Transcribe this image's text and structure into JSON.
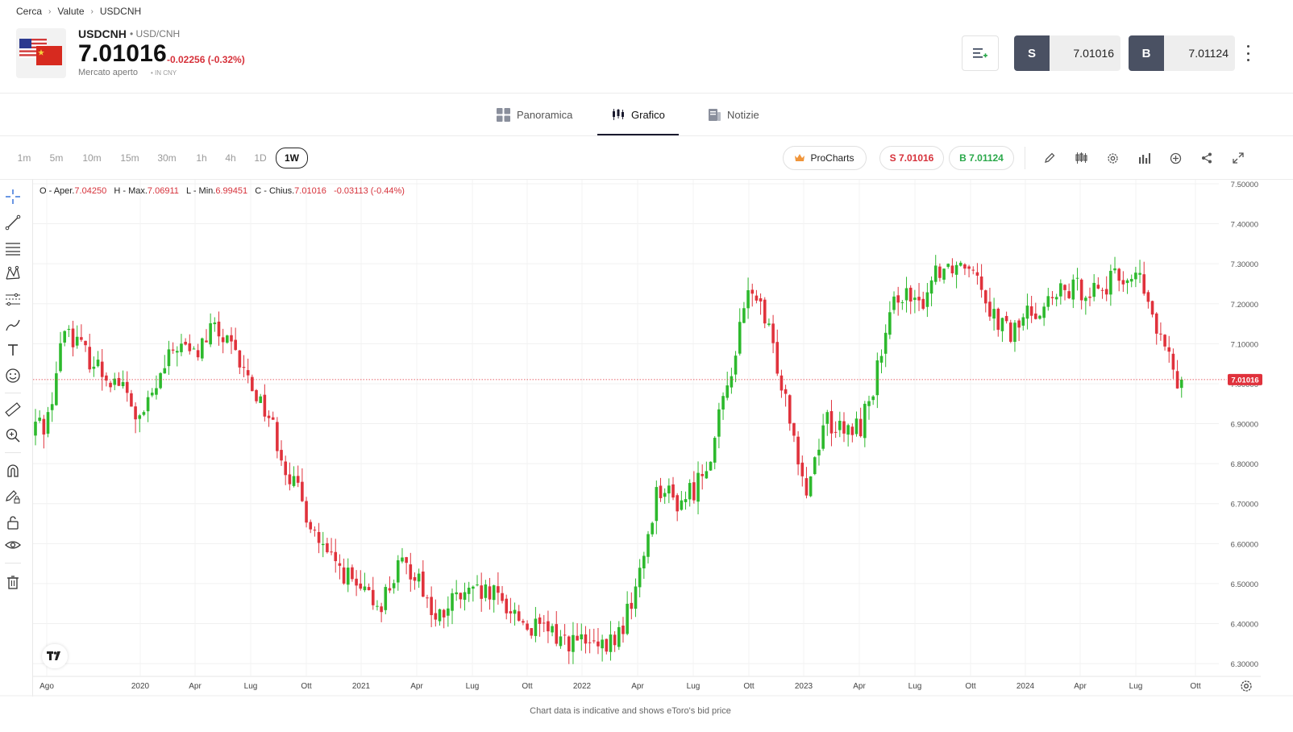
{
  "breadcrumb": [
    "Cerca",
    "Valute",
    "USDCNH"
  ],
  "instrument": {
    "symbol": "USDCNH",
    "full_name": "USD/CNH",
    "price": "7.01016",
    "change": "-0.02256 (-0.32%)",
    "status": "Mercato aperto",
    "currency": "IN CNY"
  },
  "trade": {
    "sell_label": "S",
    "sell_price": "7.01016",
    "buy_label": "B",
    "buy_price": "7.01124"
  },
  "tabs": [
    {
      "label": "Panoramica",
      "icon": "grid-icon"
    },
    {
      "label": "Grafico",
      "icon": "candles-icon",
      "active": true
    },
    {
      "label": "Notizie",
      "icon": "news-icon"
    }
  ],
  "timeframes": [
    "1m",
    "5m",
    "10m",
    "15m",
    "30m",
    "1h",
    "4h",
    "1D",
    "1W"
  ],
  "active_timeframe": "1W",
  "chart_toolbar": {
    "procharts": "ProCharts",
    "sell_pill": "S 7.01016",
    "buy_pill": "B 7.01124",
    "icons": [
      "pencil-icon",
      "indicators-icon",
      "settings-icon",
      "bars-icon",
      "add-circle-icon",
      "share-icon",
      "expand-icon"
    ]
  },
  "left_tools": [
    "crosshair-icon",
    "trendline-icon",
    "fib-icon",
    "pattern-icon",
    "forecast-icon",
    "brush-icon",
    "text-icon",
    "emoji-icon",
    "ruler-icon",
    "zoom-in-icon",
    "magnet-icon",
    "lock-drawing-icon",
    "unlock-icon",
    "eye-icon",
    "trash-icon"
  ],
  "ohlc": {
    "o_label": "O - Aper.",
    "o": "7.04250",
    "h_label": "H - Max.",
    "h": "7.06911",
    "l_label": "L - Min.",
    "l": "6.99451",
    "c_label": "C - Chius.",
    "c": "7.01016",
    "chg": "-0.03113 (-0.44%)"
  },
  "footer_note": "Chart data is indicative and shows eToro's bid price",
  "colors": {
    "up": "#2db92d",
    "down": "#e0323c",
    "accent": "#4a5163",
    "sell": "#d6313a",
    "buy": "#2aa84a"
  },
  "chart_data": {
    "type": "candlestick",
    "interval": "1W",
    "y_ticks": [
      "6.30000",
      "6.40000",
      "6.50000",
      "6.60000",
      "6.70000",
      "6.80000",
      "6.90000",
      "7.00000",
      "7.10000",
      "7.20000",
      "7.30000",
      "7.40000",
      "7.50000"
    ],
    "ylim": [
      6.27,
      7.51
    ],
    "x_labels": [
      "Ago",
      "2020",
      "Apr",
      "Lug",
      "Ott",
      "2021",
      "Apr",
      "Lug",
      "Ott",
      "2022",
      "Apr",
      "Lug",
      "Ott",
      "2023",
      "Apr",
      "Lug",
      "Ott",
      "2024",
      "Apr",
      "Lug",
      "Ott"
    ],
    "last_price_label": "7.01016",
    "last_price": 7.01016,
    "price_path": [
      [
        "2019-08",
        6.9
      ],
      [
        "2019-09",
        7.15
      ],
      [
        "2019-10",
        7.08
      ],
      [
        "2019-11",
        7.03
      ],
      [
        "2019-12",
        7.0
      ],
      [
        "2020-01",
        6.9
      ],
      [
        "2020-02",
        7.0
      ],
      [
        "2020-03",
        7.1
      ],
      [
        "2020-04",
        7.07
      ],
      [
        "2020-05",
        7.14
      ],
      [
        "2020-06",
        7.08
      ],
      [
        "2020-07",
        7.0
      ],
      [
        "2020-08",
        6.92
      ],
      [
        "2020-09",
        6.78
      ],
      [
        "2020-10",
        6.68
      ],
      [
        "2020-11",
        6.57
      ],
      [
        "2020-12",
        6.53
      ],
      [
        "2021-01",
        6.47
      ],
      [
        "2021-02",
        6.45
      ],
      [
        "2021-03",
        6.54
      ],
      [
        "2021-04",
        6.53
      ],
      [
        "2021-05",
        6.4
      ],
      [
        "2021-06",
        6.46
      ],
      [
        "2021-07",
        6.47
      ],
      [
        "2021-08",
        6.47
      ],
      [
        "2021-09",
        6.44
      ],
      [
        "2021-10",
        6.39
      ],
      [
        "2021-11",
        6.38
      ],
      [
        "2021-12",
        6.36
      ],
      [
        "2022-01",
        6.35
      ],
      [
        "2022-02",
        6.33
      ],
      [
        "2022-03",
        6.38
      ],
      [
        "2022-04",
        6.52
      ],
      [
        "2022-05",
        6.75
      ],
      [
        "2022-06",
        6.7
      ],
      [
        "2022-07",
        6.74
      ],
      [
        "2022-08",
        6.85
      ],
      [
        "2022-09",
        7.05
      ],
      [
        "2022-10",
        7.25
      ],
      [
        "2022-11",
        7.12
      ],
      [
        "2022-12",
        6.95
      ],
      [
        "2023-01",
        6.73
      ],
      [
        "2023-02",
        6.92
      ],
      [
        "2023-03",
        6.87
      ],
      [
        "2023-04",
        6.9
      ],
      [
        "2023-05",
        7.06
      ],
      [
        "2023-06",
        7.24
      ],
      [
        "2023-07",
        7.18
      ],
      [
        "2023-08",
        7.29
      ],
      [
        "2023-09",
        7.3
      ],
      [
        "2023-10",
        7.31
      ],
      [
        "2023-11",
        7.18
      ],
      [
        "2023-12",
        7.12
      ],
      [
        "2024-01",
        7.18
      ],
      [
        "2024-02",
        7.2
      ],
      [
        "2024-03",
        7.23
      ],
      [
        "2024-04",
        7.24
      ],
      [
        "2024-05",
        7.24
      ],
      [
        "2024-06",
        7.27
      ],
      [
        "2024-07",
        7.26
      ],
      [
        "2024-08",
        7.12
      ],
      [
        "2024-09",
        7.01
      ]
    ]
  }
}
